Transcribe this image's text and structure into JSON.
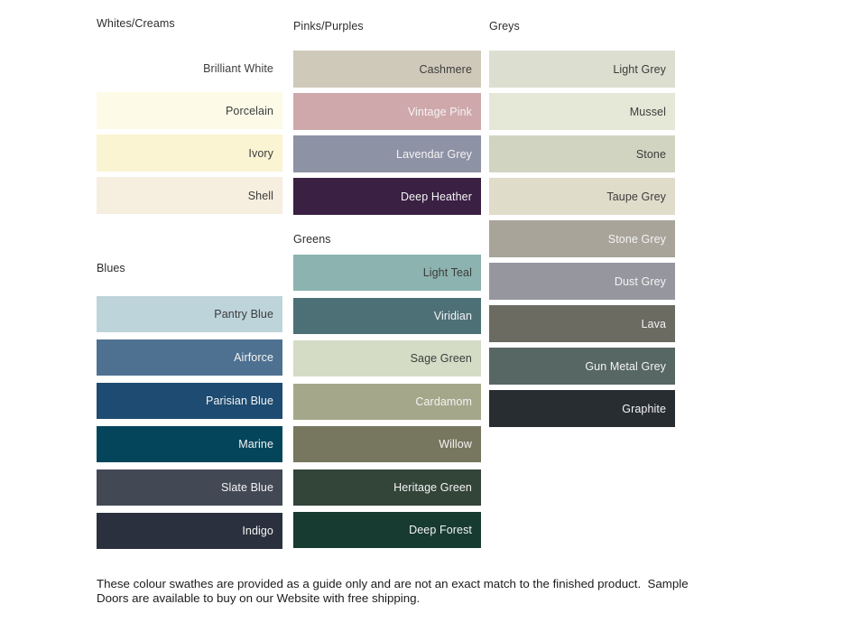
{
  "page": {
    "background": "#ffffff"
  },
  "text_colors": {
    "dark": "#3c3c3c",
    "light": "#f4f4f4"
  },
  "sections": {
    "whites": {
      "title": "Whites/Creams",
      "swatches": [
        {
          "name": "Brilliant White",
          "color": "#ffffff",
          "text": "dark"
        },
        {
          "name": "Porcelain",
          "color": "#fdfbe8",
          "text": "dark"
        },
        {
          "name": "Ivory",
          "color": "#faf4d2",
          "text": "dark"
        },
        {
          "name": "Shell",
          "color": "#f6eedf",
          "text": "dark"
        }
      ]
    },
    "pinks": {
      "title": "Pinks/Purples",
      "swatches": [
        {
          "name": "Cashmere",
          "color": "#cfc9ba",
          "text": "dark"
        },
        {
          "name": "Vintage Pink",
          "color": "#cfa8ab",
          "text": "light"
        },
        {
          "name": "Lavendar Grey",
          "color": "#8e92a5",
          "text": "light"
        },
        {
          "name": "Deep Heather",
          "color": "#3a2043",
          "text": "light"
        }
      ]
    },
    "greys": {
      "title": "Greys",
      "swatches": [
        {
          "name": "Light Grey",
          "color": "#dcded0",
          "text": "dark"
        },
        {
          "name": "Mussel",
          "color": "#e5e7d7",
          "text": "dark"
        },
        {
          "name": "Stone",
          "color": "#d1d4c1",
          "text": "dark"
        },
        {
          "name": "Taupe Grey",
          "color": "#e0dcca",
          "text": "dark"
        },
        {
          "name": "Stone Grey",
          "color": "#a9a49a",
          "text": "light"
        },
        {
          "name": "Dust Grey",
          "color": "#96979e",
          "text": "light"
        },
        {
          "name": "Lava",
          "color": "#6c6b62",
          "text": "light"
        },
        {
          "name": "Gun Metal Grey",
          "color": "#576763",
          "text": "light"
        },
        {
          "name": "Graphite",
          "color": "#282d32",
          "text": "light"
        }
      ]
    },
    "blues": {
      "title": "Blues",
      "swatches": [
        {
          "name": "Pantry Blue",
          "color": "#bed4db",
          "text": "dark"
        },
        {
          "name": "Airforce",
          "color": "#4e7191",
          "text": "light"
        },
        {
          "name": "Parisian Blue",
          "color": "#1d4b71",
          "text": "light"
        },
        {
          "name": "Marine",
          "color": "#04455b",
          "text": "light"
        },
        {
          "name": "Slate Blue",
          "color": "#424854",
          "text": "light"
        },
        {
          "name": "Indigo",
          "color": "#2a303d",
          "text": "light"
        }
      ]
    },
    "greens": {
      "title": "Greens",
      "swatches": [
        {
          "name": "Light Teal",
          "color": "#8cb3af",
          "text": "dark"
        },
        {
          "name": "Viridian",
          "color": "#4d7077",
          "text": "light"
        },
        {
          "name": "Sage Green",
          "color": "#d5dcc6",
          "text": "dark"
        },
        {
          "name": "Cardamom",
          "color": "#a4a78a",
          "text": "light"
        },
        {
          "name": "Willow",
          "color": "#77765e",
          "text": "light"
        },
        {
          "name": "Heritage Green",
          "color": "#334439",
          "text": "light"
        },
        {
          "name": "Deep Forest",
          "color": "#173a31",
          "text": "light"
        }
      ]
    }
  },
  "footer": {
    "line1": "These colour swathes are provided as a guide only and are not an exact match to the finished product.  Sample",
    "line2": "Doors are available to buy on our Website with free shipping."
  }
}
